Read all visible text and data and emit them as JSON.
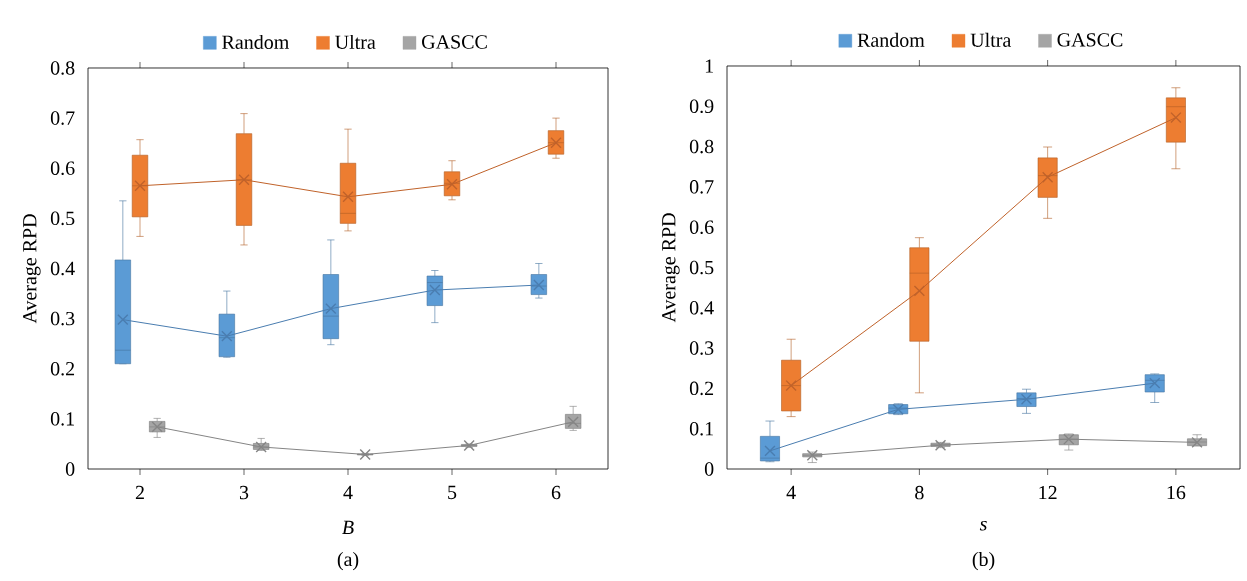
{
  "chart_data": [
    {
      "type": "box",
      "xlabel": "B",
      "ylabel": "Average RPD",
      "categories": [
        "2",
        "3",
        "4",
        "5",
        "6"
      ],
      "ylim": [
        0,
        0.8
      ],
      "yticks": [
        0,
        0.1,
        0.2,
        0.3,
        0.4,
        0.5,
        0.6,
        0.7,
        0.8
      ],
      "legend": "top",
      "grid": false,
      "annotations": [
        "(a)"
      ],
      "series": [
        {
          "name": "Random",
          "color": "#5b9bd5",
          "boxes": [
            {
              "low": 0.21,
              "q1": 0.21,
              "median": 0.237,
              "q3": 0.417,
              "high": 0.535
            },
            {
              "low": 0.223,
              "q1": 0.224,
              "median": 0.262,
              "q3": 0.309,
              "high": 0.355
            },
            {
              "low": 0.248,
              "q1": 0.26,
              "median": 0.305,
              "q3": 0.388,
              "high": 0.457
            },
            {
              "low": 0.292,
              "q1": 0.326,
              "median": 0.372,
              "q3": 0.385,
              "high": 0.396
            },
            {
              "low": 0.341,
              "q1": 0.348,
              "median": 0.365,
              "q3": 0.388,
              "high": 0.41
            }
          ]
        },
        {
          "name": "Ultra",
          "color": "#ed7d31",
          "boxes": [
            {
              "low": 0.464,
              "q1": 0.503,
              "median": 0.565,
              "q3": 0.626,
              "high": 0.657
            },
            {
              "low": 0.447,
              "q1": 0.486,
              "median": 0.577,
              "q3": 0.669,
              "high": 0.709
            },
            {
              "low": 0.475,
              "q1": 0.49,
              "median": 0.51,
              "q3": 0.61,
              "high": 0.678
            },
            {
              "low": 0.537,
              "q1": 0.545,
              "median": 0.57,
              "q3": 0.593,
              "high": 0.615
            },
            {
              "low": 0.62,
              "q1": 0.628,
              "median": 0.651,
              "q3": 0.675,
              "high": 0.7
            }
          ]
        },
        {
          "name": "GASCC",
          "color": "#a5a5a5",
          "boxes": [
            {
              "low": 0.063,
              "q1": 0.074,
              "median": 0.084,
              "q3": 0.095,
              "high": 0.101
            },
            {
              "low": 0.037,
              "q1": 0.039,
              "median": 0.044,
              "q3": 0.051,
              "high": 0.061
            },
            {
              "low": 0.027,
              "q1": 0.028,
              "median": 0.029,
              "q3": 0.03,
              "high": 0.031
            },
            {
              "low": 0.043,
              "q1": 0.045,
              "median": 0.047,
              "q3": 0.049,
              "high": 0.05
            },
            {
              "low": 0.077,
              "q1": 0.081,
              "median": 0.091,
              "q3": 0.109,
              "high": 0.125
            }
          ]
        },
        {
          "type": "line",
          "color": "#4a7db0",
          "marker": "cross",
          "line_style": "solid",
          "values": [
            0.298,
            0.265,
            0.32,
            0.357,
            0.367
          ]
        },
        {
          "type": "line",
          "color": "#c0622a",
          "marker": "cross",
          "line_style": "solid",
          "values": [
            0.565,
            0.577,
            0.543,
            0.568,
            0.651
          ]
        },
        {
          "type": "line",
          "color": "#858585",
          "marker": "cross",
          "line_style": "solid",
          "values": [
            0.084,
            0.044,
            0.029,
            0.047,
            0.094
          ]
        }
      ]
    },
    {
      "type": "box",
      "xlabel": "s",
      "ylabel": "Average RPD",
      "categories": [
        "4",
        "8",
        "12",
        "16"
      ],
      "ylim": [
        0,
        1
      ],
      "yticks": [
        0,
        0.1,
        0.2,
        0.3,
        0.4,
        0.5,
        0.6,
        0.7,
        0.8,
        0.9,
        1
      ],
      "legend": "top",
      "grid": false,
      "annotations": [
        "(b)"
      ],
      "series": [
        {
          "name": "Random",
          "color": "#5b9bd5",
          "boxes": [
            {
              "low": 0.018,
              "q1": 0.02,
              "median": 0.027,
              "q3": 0.081,
              "high": 0.119
            },
            {
              "low": 0.135,
              "q1": 0.137,
              "median": 0.151,
              "q3": 0.16,
              "high": 0.162
            },
            {
              "low": 0.138,
              "q1": 0.155,
              "median": 0.175,
              "q3": 0.189,
              "high": 0.198
            },
            {
              "low": 0.165,
              "q1": 0.191,
              "median": 0.22,
              "q3": 0.234,
              "high": 0.236
            }
          ]
        },
        {
          "name": "Ultra",
          "color": "#ed7d31",
          "boxes": [
            {
              "low": 0.13,
              "q1": 0.144,
              "median": 0.207,
              "q3": 0.27,
              "high": 0.322
            },
            {
              "low": 0.189,
              "q1": 0.317,
              "median": 0.486,
              "q3": 0.549,
              "high": 0.574
            },
            {
              "low": 0.622,
              "q1": 0.674,
              "median": 0.728,
              "q3": 0.772,
              "high": 0.799
            },
            {
              "low": 0.745,
              "q1": 0.811,
              "median": 0.899,
              "q3": 0.921,
              "high": 0.946
            }
          ]
        },
        {
          "name": "GASCC",
          "color": "#a5a5a5",
          "boxes": [
            {
              "low": 0.016,
              "q1": 0.03,
              "median": 0.034,
              "q3": 0.038,
              "high": 0.042
            },
            {
              "low": 0.053,
              "q1": 0.056,
              "median": 0.06,
              "q3": 0.064,
              "high": 0.066
            },
            {
              "low": 0.047,
              "q1": 0.06,
              "median": 0.074,
              "q3": 0.085,
              "high": 0.087
            },
            {
              "low": 0.057,
              "q1": 0.058,
              "median": 0.067,
              "q3": 0.075,
              "high": 0.085
            }
          ]
        },
        {
          "type": "line",
          "color": "#4a7db0",
          "marker": "cross",
          "line_style": "solid",
          "values": [
            0.045,
            0.148,
            0.173,
            0.213
          ]
        },
        {
          "type": "line",
          "color": "#c0622a",
          "marker": "cross",
          "line_style": "solid",
          "values": [
            0.207,
            0.442,
            0.724,
            0.872
          ]
        },
        {
          "type": "line",
          "color": "#858585",
          "marker": "cross",
          "line_style": "solid",
          "values": [
            0.034,
            0.059,
            0.074,
            0.066
          ]
        }
      ]
    }
  ]
}
